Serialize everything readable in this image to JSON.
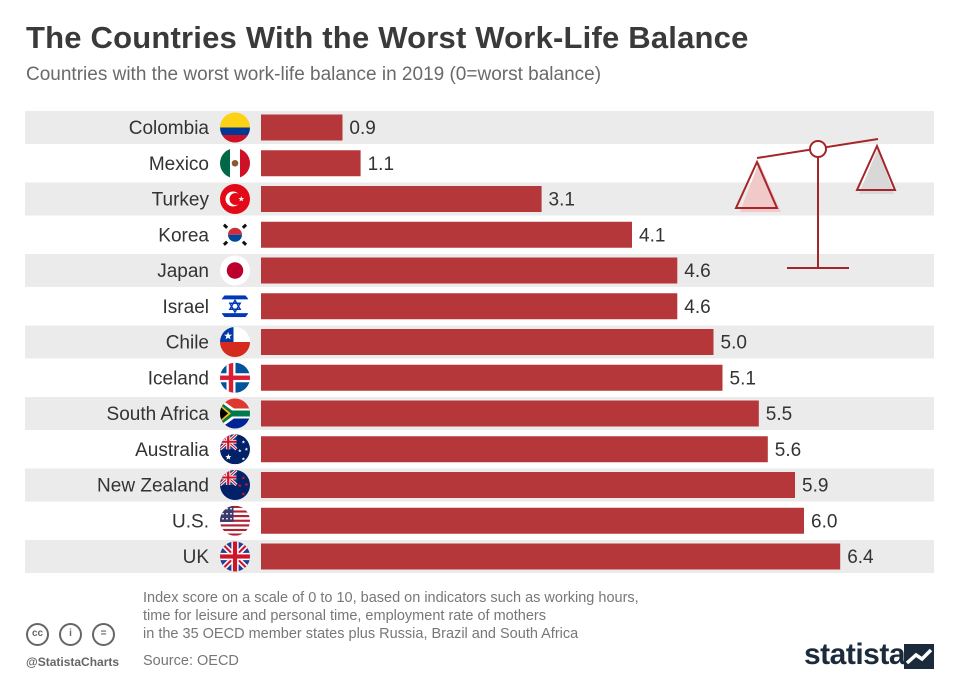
{
  "header": {
    "title": "The Countries With the Worst Work-Life Balance",
    "subtitle": "Countries with the worst work-life balance in 2019 (0=worst balance)"
  },
  "chart_data": {
    "type": "bar",
    "orientation": "horizontal",
    "title": "The Countries With the Worst Work-Life Balance",
    "subtitle": "Countries with the worst work-life balance in 2019 (0=worst balance)",
    "categories": [
      "Colombia",
      "Mexico",
      "Turkey",
      "Korea",
      "Japan",
      "Israel",
      "Chile",
      "Iceland",
      "South Africa",
      "Australia",
      "New Zealand",
      "U.S.",
      "UK"
    ],
    "values": [
      0.9,
      1.1,
      3.1,
      4.1,
      4.6,
      4.6,
      5.0,
      5.1,
      5.5,
      5.6,
      5.9,
      6.0,
      6.4
    ],
    "value_labels": [
      "0.9",
      "1.1",
      "3.1",
      "4.1",
      "4.6",
      "4.6",
      "5.0",
      "5.1",
      "5.5",
      "5.6",
      "5.9",
      "6.0",
      "6.4"
    ],
    "flags": [
      "colombia-flag",
      "mexico-flag",
      "turkey-flag",
      "korea-flag",
      "japan-flag",
      "israel-flag",
      "chile-flag",
      "iceland-flag",
      "south-africa-flag",
      "australia-flag",
      "new-zealand-flag",
      "us-flag",
      "uk-flag"
    ],
    "xlim": [
      0,
      10
    ],
    "xlabel": "",
    "ylabel": "",
    "bar_color": "#b5373a",
    "stripe_color": "#ebebeb",
    "grid": false,
    "legend": "none"
  },
  "footer": {
    "note_lines": [
      "Index score on a scale of 0 to 10, based on indicators such as working hours,",
      "time for leisure and personal time, employment rate of mothers",
      "in the 35 OECD member states plus Russia, Brazil and South Africa"
    ],
    "source": "Source: OECD",
    "handle": "@StatistaCharts",
    "brand": "statista",
    "cc_labels": [
      "cc",
      "i",
      "="
    ]
  },
  "icons": [
    "scale-icon",
    "cc-icon",
    "by-icon",
    "nd-icon",
    "statista-logo-icon"
  ]
}
